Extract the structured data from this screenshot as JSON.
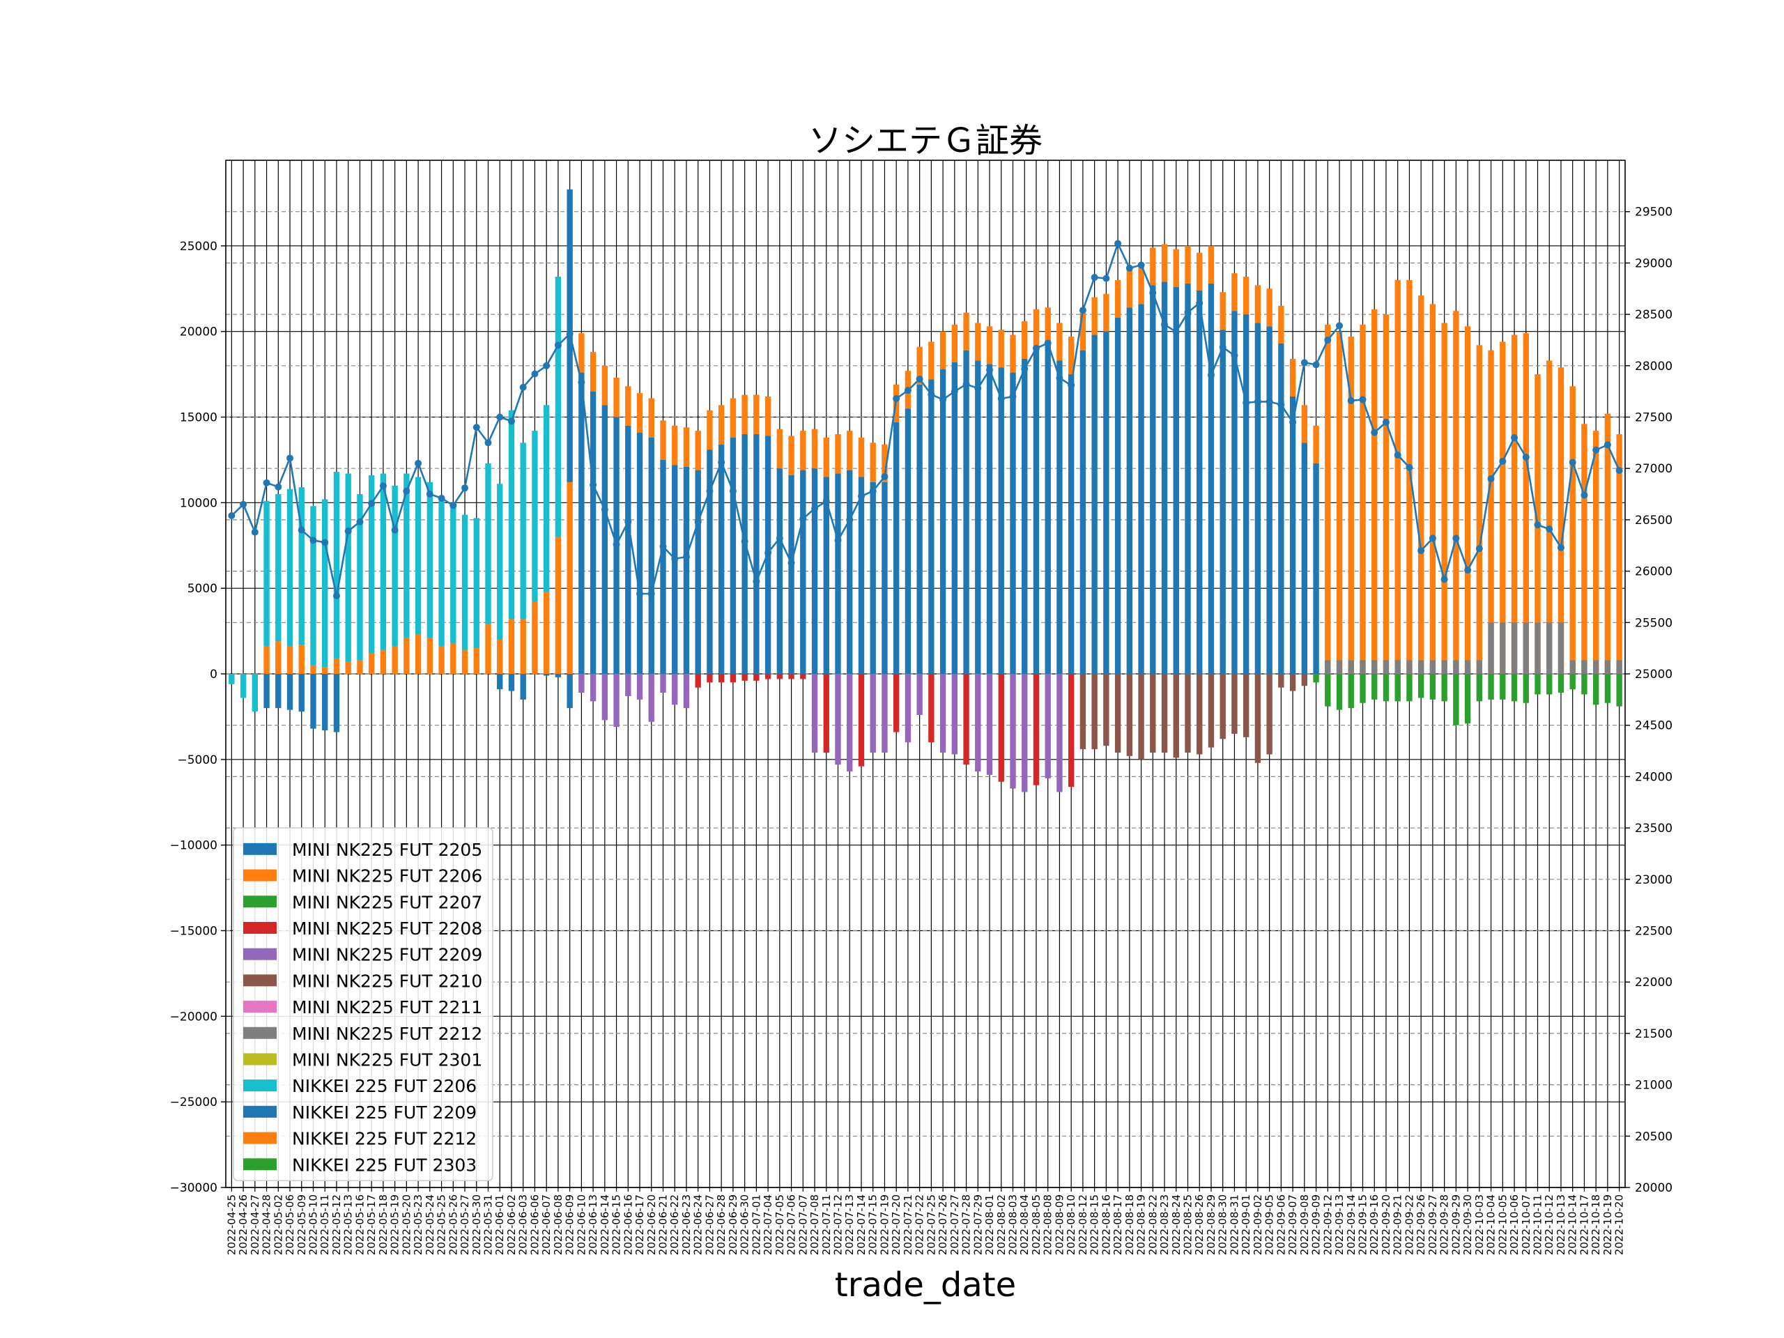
{
  "chart_data": {
    "type": "bar",
    "stacked": true,
    "title": "ソシエテＧ証券",
    "xlabel": "trade_date",
    "ylabel": "",
    "ylim": [
      -30000,
      30000
    ],
    "y2lim": [
      20000,
      30000
    ],
    "yticks": [
      -30000,
      -25000,
      -20000,
      -15000,
      -10000,
      -5000,
      0,
      5000,
      10000,
      15000,
      20000,
      25000
    ],
    "y2ticks": [
      20000,
      20500,
      21000,
      21500,
      22000,
      22500,
      23000,
      23500,
      24000,
      24500,
      25000,
      25500,
      26000,
      26500,
      27000,
      27500,
      28000,
      28500,
      29000,
      29500
    ],
    "grid": true,
    "legend_position": "lower-left",
    "dates": [
      "2022-04-25",
      "2022-04-26",
      "2022-04-27",
      "2022-04-28",
      "2022-05-02",
      "2022-05-06",
      "2022-05-09",
      "2022-05-10",
      "2022-05-11",
      "2022-05-12",
      "2022-05-13",
      "2022-05-16",
      "2022-05-17",
      "2022-05-18",
      "2022-05-19",
      "2022-05-20",
      "2022-05-23",
      "2022-05-24",
      "2022-05-25",
      "2022-05-26",
      "2022-05-27",
      "2022-05-30",
      "2022-05-31",
      "2022-06-01",
      "2022-06-02",
      "2022-06-03",
      "2022-06-06",
      "2022-06-07",
      "2022-06-08",
      "2022-06-09",
      "2022-06-10",
      "2022-06-13",
      "2022-06-14",
      "2022-06-15",
      "2022-06-16",
      "2022-06-17",
      "2022-06-20",
      "2022-06-21",
      "2022-06-22",
      "2022-06-23",
      "2022-06-24",
      "2022-06-27",
      "2022-06-28",
      "2022-06-29",
      "2022-06-30",
      "2022-07-01",
      "2022-07-04",
      "2022-07-05",
      "2022-07-06",
      "2022-07-07",
      "2022-07-08",
      "2022-07-11",
      "2022-07-12",
      "2022-07-13",
      "2022-07-14",
      "2022-07-15",
      "2022-07-19",
      "2022-07-20",
      "2022-07-21",
      "2022-07-22",
      "2022-07-25",
      "2022-07-26",
      "2022-07-27",
      "2022-07-28",
      "2022-07-29",
      "2022-08-01",
      "2022-08-02",
      "2022-08-03",
      "2022-08-04",
      "2022-08-05",
      "2022-08-08",
      "2022-08-09",
      "2022-08-10",
      "2022-08-12",
      "2022-08-15",
      "2022-08-16",
      "2022-08-17",
      "2022-08-18",
      "2022-08-19",
      "2022-08-22",
      "2022-08-23",
      "2022-08-24",
      "2022-08-25",
      "2022-08-26",
      "2022-08-29",
      "2022-08-30",
      "2022-08-31",
      "2022-09-01",
      "2022-09-02",
      "2022-09-05",
      "2022-09-06",
      "2022-09-07",
      "2022-09-08",
      "2022-09-09",
      "2022-09-12",
      "2022-09-13",
      "2022-09-14",
      "2022-09-15",
      "2022-09-16",
      "2022-09-20",
      "2022-09-21",
      "2022-09-22",
      "2022-09-26",
      "2022-09-27",
      "2022-09-28",
      "2022-09-29",
      "2022-09-30",
      "2022-10-03",
      "2022-10-04",
      "2022-10-05",
      "2022-10-06",
      "2022-10-07",
      "2022-10-11",
      "2022-10-12",
      "2022-10-13",
      "2022-10-14",
      "2022-10-17",
      "2022-10-18",
      "2022-10-19",
      "2022-10-20"
    ],
    "series": [
      {
        "name": "MINI NK225 FUT 2205",
        "color": "#1f77b4"
      },
      {
        "name": "MINI NK225 FUT 2206",
        "color": "#ff7f0e"
      },
      {
        "name": "MINI NK225 FUT 2207",
        "color": "#2ca02c"
      },
      {
        "name": "MINI NK225 FUT 2208",
        "color": "#d62728"
      },
      {
        "name": "MINI NK225 FUT 2209",
        "color": "#9467bd"
      },
      {
        "name": "MINI NK225 FUT 2210",
        "color": "#8c564b"
      },
      {
        "name": "MINI NK225 FUT 2211",
        "color": "#e377c2"
      },
      {
        "name": "MINI NK225 FUT 2212",
        "color": "#7f7f7f"
      },
      {
        "name": "MINI NK225 FUT 2301",
        "color": "#bcbd22"
      },
      {
        "name": "NIKKEI 225 FUT 2206",
        "color": "#17becf"
      },
      {
        "name": "NIKKEI 225 FUT 2209",
        "color": "#1f77b4"
      },
      {
        "name": "NIKKEI 225 FUT 2212",
        "color": "#ff7f0e"
      },
      {
        "name": "NIKKEI 225 FUT 2303",
        "color": "#2ca02c"
      }
    ],
    "line_series": {
      "name": "",
      "color": "#1f77b4",
      "values": [
        26540,
        26650,
        26380,
        26860,
        26820,
        27100,
        26400,
        26300,
        26280,
        25760,
        26390,
        26480,
        26660,
        26830,
        26400,
        26780,
        27050,
        26750,
        26710,
        26640,
        26810,
        27400,
        27250,
        27500,
        27460,
        27790,
        27920,
        28000,
        28200,
        28310,
        27840,
        26840,
        26600,
        26260,
        26480,
        25780,
        25780,
        26240,
        26120,
        26140,
        26480,
        26780,
        27060,
        26780,
        26290,
        25900,
        26180,
        26320,
        26080,
        26510,
        26610,
        26680,
        26300,
        26500,
        26730,
        26780,
        26920,
        27680,
        27760,
        27870,
        27720,
        27670,
        27750,
        27820,
        27780,
        27960,
        27680,
        27700,
        27970,
        28170,
        28220,
        27880,
        27810,
        28540,
        28860,
        28850,
        29190,
        28950,
        28980,
        28710,
        28400,
        28330,
        28520,
        28610,
        27910,
        28180,
        28100,
        27640,
        27650,
        27650,
        27620,
        27450,
        28030,
        28010,
        28250,
        28390,
        27660,
        27670,
        27350,
        27450,
        27130,
        27010,
        26200,
        26320,
        25920,
        26320,
        26010,
        26220,
        26900,
        27070,
        27300,
        27110,
        26450,
        26410,
        26230,
        27060,
        26740,
        27180,
        27230,
        26980
      ]
    },
    "stacks": {
      "pos_main": [
        0,
        0,
        0,
        8500,
        8600,
        9200,
        9200,
        9300,
        9800,
        10900,
        11000,
        9700,
        10400,
        10300,
        9400,
        9600,
        9200,
        9100,
        8500,
        8200,
        7900,
        7600,
        9400,
        9100,
        12200,
        10300,
        10000,
        10900,
        15200,
        17100,
        17600,
        16500,
        15700,
        15000,
        14500,
        14100,
        13800,
        12500,
        12200,
        12100,
        11900,
        13100,
        13400,
        13800,
        14000,
        14000,
        13900,
        12000,
        11600,
        11900,
        12000,
        11500,
        11700,
        11900,
        11500,
        11200,
        11200,
        14700,
        15500,
        16900,
        17200,
        17800,
        18200,
        18900,
        18300,
        18100,
        17900,
        17600,
        18400,
        19100,
        19200,
        18300,
        17500,
        18900,
        19800,
        20000,
        20800,
        21400,
        21600,
        22700,
        22900,
        22600,
        22800,
        22400,
        22800,
        20100,
        21200,
        21000,
        20500,
        20300,
        19300,
        16200,
        13500,
        12300,
        0,
        0,
        0,
        0,
        0,
        0,
        0,
        0,
        0,
        0,
        0,
        0,
        0,
        0,
        0,
        0,
        0,
        0,
        0,
        0,
        0,
        0,
        0,
        0,
        0,
        0
      ],
      "pos_orange": [
        0,
        0,
        0,
        1600,
        1900,
        1600,
        1700,
        500,
        400,
        900,
        700,
        800,
        1200,
        1400,
        1600,
        2100,
        2300,
        2100,
        1600,
        1800,
        1400,
        1500,
        2900,
        2000,
        3200,
        3200,
        4200,
        4800,
        8000,
        11200,
        0,
        0,
        0,
        0,
        0,
        0,
        0,
        0,
        0,
        0,
        0,
        0,
        0,
        0,
        0,
        0,
        0,
        0,
        0,
        0,
        0,
        0,
        0,
        0,
        0,
        0,
        0,
        0,
        0,
        0,
        0,
        0,
        0,
        0,
        0,
        0,
        0,
        0,
        0,
        0,
        0,
        0,
        0,
        0,
        0,
        0,
        0,
        0,
        0,
        0,
        0,
        0,
        0,
        0,
        0,
        0,
        0,
        0,
        0,
        0,
        0,
        0,
        0,
        0,
        20400,
        20000,
        19700,
        20400,
        21300,
        21000,
        23000,
        23000,
        22100,
        21600,
        20500,
        21200,
        20300,
        19200,
        18900,
        19400,
        19800,
        19900,
        17500,
        18300,
        17900,
        16800,
        14600,
        14200,
        15200,
        14000
      ],
      "neg_main": [
        -600,
        -1400,
        -2200,
        -2000,
        -2000,
        -2100,
        -2200,
        -3200,
        -3300,
        -3400,
        0,
        0,
        0,
        0,
        0,
        0,
        0,
        0,
        0,
        0,
        0,
        0,
        0,
        -900,
        -1000,
        -1500,
        0,
        -100,
        -200,
        -2000,
        -1100,
        -1600,
        -2700,
        -3100,
        -1300,
        -1500,
        -2800,
        -1100,
        -1800,
        -2000,
        -800,
        -500,
        -500,
        -500,
        -400,
        -400,
        -300,
        -300,
        -300,
        -300,
        -4600,
        -4600,
        -5300,
        -5700,
        -5400,
        -4600,
        -4600,
        -3400,
        -4000,
        -2400,
        -4000,
        -4600,
        -4700,
        -5300,
        -5700,
        -5900,
        -6300,
        -6700,
        -6900,
        -6500,
        -6100,
        -6900,
        -6600,
        -4400,
        -4400,
        -4200,
        -4600,
        -4800,
        -5000,
        -4600,
        -4600,
        -4900,
        -4600,
        -4700,
        -4300,
        -3800,
        -3500,
        -3700,
        -5200,
        -4700,
        -800,
        -1000,
        -700,
        -500,
        -1900,
        -2100,
        -2000,
        -1700,
        -1500,
        -1600,
        -1600,
        -1600,
        -1400,
        -1500,
        -1600,
        -3000,
        -2900,
        -1600,
        -1500,
        -1500,
        -1600,
        -1700,
        -1200,
        -1200,
        -1100,
        -900,
        -1200,
        -1800,
        -1700,
        -1900
      ]
    }
  }
}
